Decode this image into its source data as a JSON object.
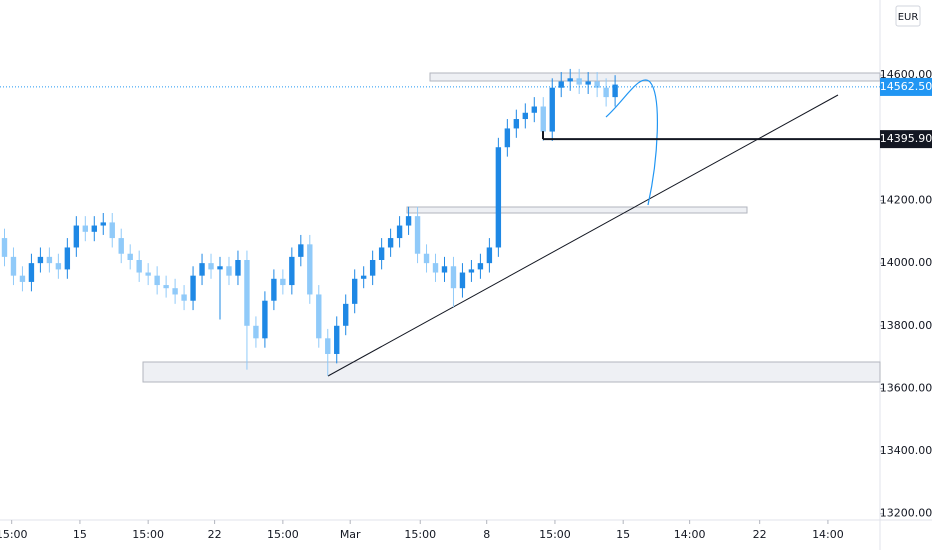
{
  "chart_data": {
    "type": "candlestick",
    "x": [
      0,
      1,
      2,
      3,
      4,
      5,
      6,
      7,
      8,
      9,
      10,
      11,
      12,
      13,
      14,
      15,
      16,
      17,
      18,
      19,
      20,
      21,
      22,
      23,
      24,
      25,
      26,
      27,
      28,
      29,
      30,
      31,
      32,
      33,
      34,
      35,
      36,
      37,
      38,
      39,
      40,
      41,
      42,
      43,
      44,
      45,
      46,
      47,
      48,
      49,
      50,
      51,
      52,
      53,
      54,
      55,
      56,
      57,
      58,
      59,
      60,
      61,
      62,
      63,
      64,
      65,
      66,
      67,
      68
    ],
    "open": [
      14080,
      14020,
      13960,
      13940,
      14000,
      14020,
      14000,
      13980,
      14050,
      14120,
      14100,
      14120,
      14130,
      14080,
      14030,
      14010,
      13970,
      13960,
      13930,
      13920,
      13900,
      13880,
      13960,
      14000,
      13980,
      13990,
      13960,
      14010,
      13800,
      13760,
      13880,
      13950,
      13930,
      14020,
      14060,
      13900,
      13760,
      13710,
      13800,
      13870,
      13950,
      13960,
      14010,
      14050,
      14080,
      14120,
      14150,
      14030,
      14000,
      13970,
      13990,
      13920,
      13970,
      13980,
      14000,
      14050,
      14370,
      14430,
      14460,
      14480,
      14500,
      14420,
      14560,
      14580,
      14590,
      14570,
      14580,
      14560,
      14530
    ],
    "high": [
      14110,
      14050,
      13990,
      14030,
      14050,
      14050,
      14030,
      14080,
      14150,
      14150,
      14150,
      14160,
      14160,
      14110,
      14060,
      14040,
      14000,
      13990,
      13960,
      13950,
      13930,
      13990,
      14030,
      14030,
      14020,
      14020,
      14040,
      14040,
      13830,
      13910,
      13980,
      13980,
      14050,
      14090,
      14090,
      13930,
      13790,
      13830,
      13900,
      13980,
      13990,
      14040,
      14080,
      14110,
      14150,
      14180,
      14180,
      14060,
      14030,
      14020,
      14020,
      14000,
      14010,
      14030,
      14080,
      14400,
      14460,
      14490,
      14510,
      14530,
      14530,
      14590,
      14610,
      14620,
      14620,
      14610,
      14610,
      14590,
      14600
    ],
    "low": [
      13990,
      13930,
      13910,
      13910,
      13970,
      13970,
      13950,
      13950,
      14020,
      14070,
      14070,
      14090,
      14050,
      14000,
      13980,
      13940,
      13930,
      13900,
      13890,
      13870,
      13850,
      13850,
      13930,
      13950,
      13820,
      13930,
      13930,
      13660,
      13730,
      13730,
      13850,
      13900,
      13900,
      13990,
      13870,
      13730,
      13640,
      13680,
      13770,
      13840,
      13920,
      13930,
      13980,
      14020,
      14050,
      14090,
      14000,
      13970,
      13940,
      13940,
      13860,
      13890,
      13940,
      13950,
      13970,
      14020,
      14340,
      14400,
      14430,
      14450,
      14390,
      14390,
      14530,
      14550,
      14540,
      14540,
      14530,
      14500,
      14500
    ],
    "close": [
      14020,
      13960,
      13940,
      14000,
      14020,
      14000,
      13980,
      14050,
      14120,
      14100,
      14120,
      14130,
      14080,
      14030,
      14010,
      13970,
      13960,
      13930,
      13920,
      13900,
      13880,
      13960,
      14000,
      13980,
      13990,
      13960,
      14010,
      13800,
      13760,
      13880,
      13950,
      13930,
      14020,
      14060,
      13900,
      13760,
      13710,
      13800,
      13870,
      13950,
      13960,
      14010,
      14050,
      14080,
      14120,
      14150,
      14030,
      14000,
      13970,
      13990,
      13920,
      13970,
      13980,
      14000,
      14050,
      14370,
      14430,
      14460,
      14480,
      14500,
      14420,
      14560,
      14580,
      14590,
      14570,
      14580,
      14560,
      14530,
      14570
    ],
    "up_color": "#1e88e5",
    "down_color": "#90caf9",
    "xlim": [
      -0.5,
      97.5
    ],
    "xticks": [
      {
        "value": 0.8,
        "label": "15:00"
      },
      {
        "value": 8.4,
        "label": "15"
      },
      {
        "value": 16,
        "label": "15:00"
      },
      {
        "value": 23.4,
        "label": "22"
      },
      {
        "value": 31,
        "label": "15:00"
      },
      {
        "value": 38.5,
        "label": "Mar"
      },
      {
        "value": 46.3,
        "label": "15:00"
      },
      {
        "value": 53.7,
        "label": "8"
      },
      {
        "value": 61.3,
        "label": "15:00"
      },
      {
        "value": 68.9,
        "label": "15"
      },
      {
        "value": 76.3,
        "label": "14:00"
      },
      {
        "value": 84.1,
        "label": "22"
      },
      {
        "value": 91.7,
        "label": "14:00"
      }
    ],
    "ylim": [
      13180,
      14840
    ],
    "yticks": [
      {
        "value": 13200,
        "label": "13200.00"
      },
      {
        "value": 13400,
        "label": "13400.00"
      },
      {
        "value": 13600,
        "label": "13600.00"
      },
      {
        "value": 13800,
        "label": "13800.00"
      },
      {
        "value": 14000,
        "label": "14000.00"
      },
      {
        "value": 14200,
        "label": "14200.00"
      },
      {
        "value": 14600,
        "label": "14600.00"
      }
    ],
    "last_price": {
      "value": 14562.5,
      "label": "14562.50"
    },
    "level": {
      "value": 14395.9,
      "label": "14395.90"
    },
    "currency": "EUR"
  }
}
